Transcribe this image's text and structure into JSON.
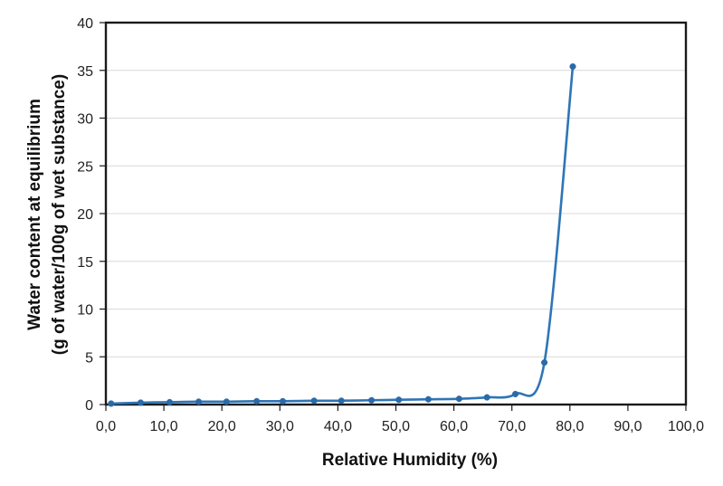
{
  "chart_data": {
    "type": "line",
    "title": "",
    "xlabel": "Relative Humidity (%)",
    "ylabel_line1": "Water content at equilibrium",
    "ylabel_line2": "(g of water/100g of wet substance)",
    "xlim": [
      0,
      100
    ],
    "ylim": [
      0,
      40
    ],
    "x_ticks": [
      "0,0",
      "10,0",
      "20,0",
      "30,0",
      "40,0",
      "50,0",
      "60,0",
      "70,0",
      "80,0",
      "90,0",
      "100,0"
    ],
    "x_tick_values": [
      0,
      10,
      20,
      30,
      40,
      50,
      60,
      70,
      80,
      90,
      100
    ],
    "y_ticks": [
      "0",
      "5",
      "10",
      "15",
      "20",
      "25",
      "30",
      "35",
      "40"
    ],
    "y_tick_values": [
      0,
      5,
      10,
      15,
      20,
      25,
      30,
      35,
      40
    ],
    "grid": {
      "horizontal": true,
      "vertical": false
    },
    "legend": null,
    "series": [
      {
        "name": "Water content",
        "color": "#2e75b6",
        "smoothed": true,
        "markers": true,
        "x": [
          0.9,
          6.0,
          11.0,
          16.0,
          20.8,
          26.0,
          30.5,
          35.9,
          40.6,
          45.8,
          50.5,
          55.6,
          60.9,
          65.7,
          70.6,
          75.6,
          80.5
        ],
        "y": [
          0.1,
          0.2,
          0.25,
          0.3,
          0.3,
          0.35,
          0.35,
          0.4,
          0.4,
          0.45,
          0.5,
          0.55,
          0.6,
          0.75,
          1.1,
          4.4,
          35.4
        ]
      }
    ]
  },
  "colors": {
    "line": "#2e75b6",
    "marker": "#2a6aa8",
    "axis": "#1a1a1a",
    "grid": "#d9d9d9"
  }
}
